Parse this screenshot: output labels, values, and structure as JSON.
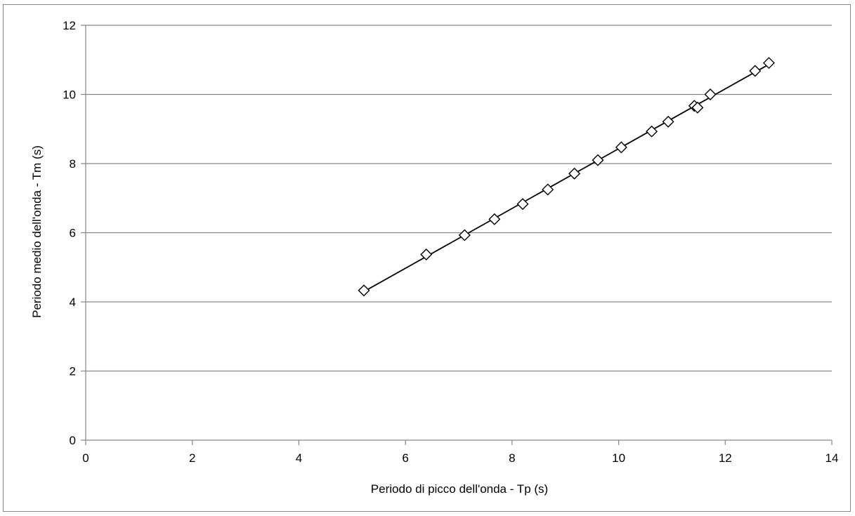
{
  "chart_data": {
    "type": "scatter",
    "title": "",
    "xlabel": "Periodo di picco dell'onda - Tp (s)",
    "ylabel": "Periodo medio dell'onda - Tm (s)",
    "xlim": [
      0,
      14
    ],
    "ylim": [
      0,
      12
    ],
    "x_ticks": [
      "0",
      "2",
      "4",
      "6",
      "8",
      "10",
      "12",
      "14"
    ],
    "y_ticks": [
      "0",
      "2",
      "4",
      "6",
      "8",
      "10",
      "12"
    ],
    "grid": {
      "horizontal": true,
      "vertical": false
    },
    "legend": "none",
    "marker": "diamond-open",
    "trendline": true,
    "colors": {
      "gridline": "#868686",
      "marker_stroke": "#000000",
      "marker_fill": "#ffffff",
      "trendline": "#000000"
    },
    "series": [
      {
        "x": [
          5.22,
          6.39,
          7.11,
          7.67,
          8.2,
          8.67,
          9.17,
          9.61,
          10.05,
          10.62,
          10.93,
          11.42,
          11.48,
          11.72,
          12.56,
          12.82
        ],
        "y": [
          4.33,
          5.37,
          5.93,
          6.39,
          6.83,
          7.25,
          7.71,
          8.1,
          8.47,
          8.93,
          9.21,
          9.67,
          9.62,
          10.0,
          10.68,
          10.91
        ]
      }
    ]
  }
}
